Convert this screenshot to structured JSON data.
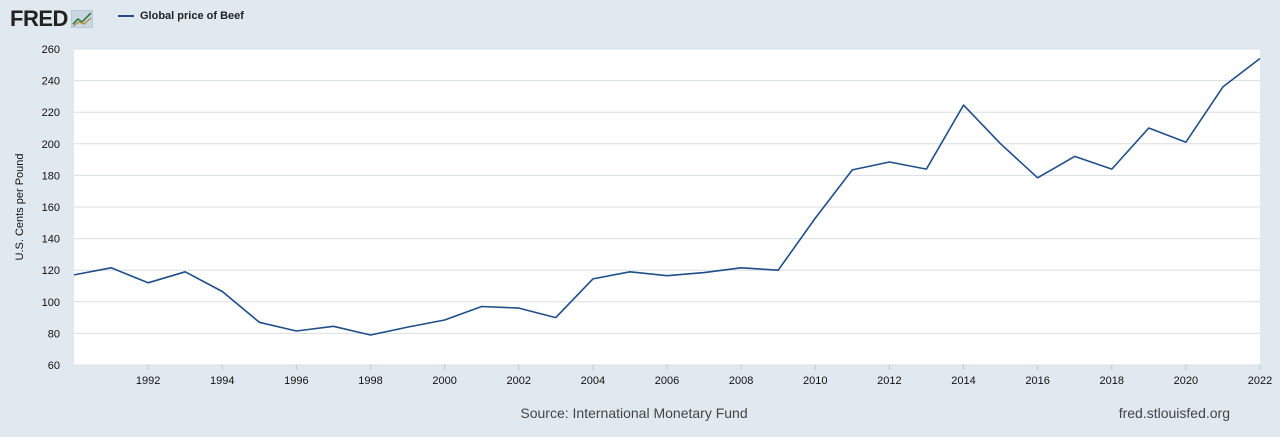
{
  "header": {
    "brand": "FRED",
    "legend_label": "Global price of Beef"
  },
  "footer": {
    "source": "Source: International Monetary Fund",
    "url": "fred.stlouisfed.org"
  },
  "colors": {
    "background": "#e1e9f0",
    "plot_background": "#ffffff",
    "series": "#1f4e89",
    "grid": "#d9dde3"
  },
  "chart_data": {
    "type": "line",
    "title": "Global price of Beef",
    "xlabel": "",
    "ylabel": "U.S. Cents per Pound",
    "ylim": [
      60,
      260
    ],
    "xlim": [
      1990,
      2022
    ],
    "yticks": [
      60,
      80,
      100,
      120,
      140,
      160,
      180,
      200,
      220,
      240,
      260
    ],
    "xticks": [
      "1992",
      "1994",
      "1996",
      "1998",
      "2000",
      "2002",
      "2004",
      "2006",
      "2008",
      "2010",
      "2012",
      "2014",
      "2016",
      "2018",
      "2020",
      "2022"
    ],
    "grid": true,
    "series": [
      {
        "name": "Global price of Beef",
        "x": [
          1990,
          1991,
          1992,
          1993,
          1994,
          1995,
          1996,
          1997,
          1998,
          1999,
          2000,
          2001,
          2002,
          2003,
          2004,
          2005,
          2006,
          2007,
          2008,
          2009,
          2010,
          2011,
          2012,
          2013,
          2014,
          2015,
          2016,
          2017,
          2018,
          2019,
          2020,
          2021,
          2022
        ],
        "values": [
          117,
          121.5,
          112,
          119,
          106.5,
          87,
          81.5,
          84.5,
          79,
          84,
          88.5,
          97,
          96,
          90,
          114.5,
          119,
          116.5,
          118.5,
          121.5,
          120,
          153,
          183.5,
          188.5,
          184,
          224.5,
          200,
          178.5,
          192,
          184,
          210,
          201,
          236,
          254
        ]
      }
    ]
  }
}
